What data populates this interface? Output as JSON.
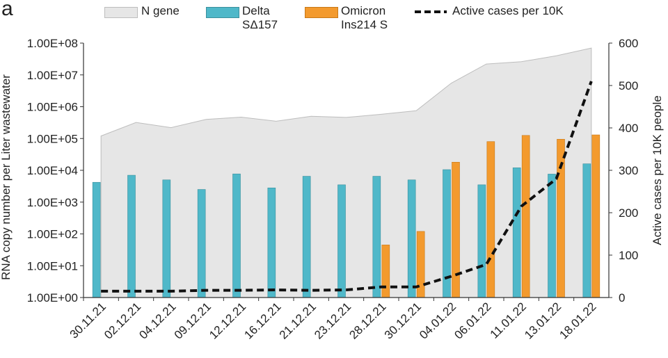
{
  "panel_label": "a",
  "colors": {
    "n_gene_fill": "#e6e6e6",
    "n_gene_stroke": "#bdbdbd",
    "delta": "#4fb8c9",
    "omicron": "#f39a2e",
    "active_line": "#111111"
  },
  "legend": [
    {
      "label": "N gene",
      "kind": "area"
    },
    {
      "label": "Delta\nSΔ157",
      "kind": "bar-delta"
    },
    {
      "label": "Omicron\nIns214 S",
      "kind": "bar-omicron"
    },
    {
      "label": "Active cases per 10K",
      "kind": "dashed-line"
    }
  ],
  "chart_data": {
    "type": "bar",
    "categories": [
      "30.11.21",
      "02.12.21",
      "04.12.21",
      "09.12.21",
      "12.12.21",
      "16.12.21",
      "21.12.21",
      "23.12.21",
      "28.12.21",
      "30.12.21",
      "04.01.22",
      "06.01.22",
      "11.01.22",
      "13.01.22",
      "18.01.22"
    ],
    "ylabel": "RNA copy number per Liter wastewater",
    "y2label": "Active cases per 10K people",
    "y_scale": "log",
    "ylim": [
      1,
      100000000
    ],
    "y_ticks": [
      "1.00E+00",
      "1.00E+01",
      "1.00E+02",
      "1.00E+03",
      "1.00E+04",
      "1.00E+05",
      "1.00E+06",
      "1.00E+07",
      "1.00E+08"
    ],
    "y2lim": [
      0,
      600
    ],
    "y2_ticks": [
      "0",
      "100",
      "200",
      "300",
      "400",
      "500",
      "600"
    ],
    "series": [
      {
        "name": "N gene",
        "type": "area",
        "axis": "left",
        "values": [
          120000,
          320000,
          220000,
          400000,
          470000,
          350000,
          500000,
          460000,
          580000,
          750000,
          5500000,
          22000000,
          26000000,
          40000000,
          70000000
        ]
      },
      {
        "name": "Delta SΔ157",
        "type": "bar",
        "axis": "left",
        "values": [
          4200,
          7000,
          5000,
          2500,
          7700,
          2800,
          6500,
          3500,
          6500,
          5000,
          10500,
          3500,
          12000,
          7600,
          16000
        ]
      },
      {
        "name": "Omicron Ins214 S",
        "type": "bar",
        "axis": "left",
        "values": [
          null,
          null,
          null,
          null,
          null,
          null,
          null,
          null,
          45,
          120,
          18000,
          80000,
          125000,
          95000,
          130000
        ]
      },
      {
        "name": "Active cases per 10K",
        "type": "line",
        "style": "dashed",
        "axis": "right",
        "values": [
          15,
          15,
          15,
          17,
          17,
          18,
          17,
          18,
          25,
          25,
          50,
          78,
          215,
          280,
          510
        ]
      }
    ],
    "legend_position": "top"
  }
}
